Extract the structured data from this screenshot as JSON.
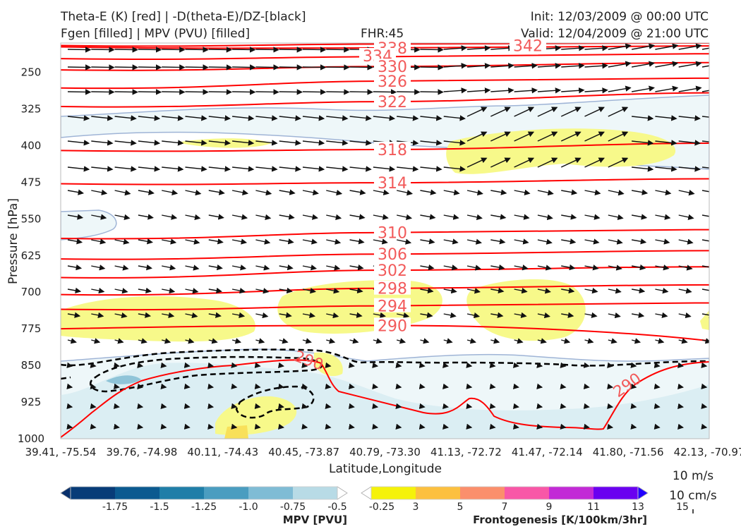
{
  "header": {
    "title_line1": "Theta-E (K) [red] | -D(theta-E)/DZ-[black]",
    "title_line2": "Fgen [filled] | MPV (PVU) [filled]",
    "fhr": "FHR:45",
    "init": "Init: 12/03/2009 @ 00:00 UTC",
    "valid": "Valid: 12/04/2009 @ 21:00 UTC"
  },
  "chart_data": {
    "type": "cross-section",
    "xlabel": "Latitude,Longitude",
    "ylabel": "Pressure [hPa]",
    "x_ticks": [
      "39.41, -75.54",
      "39.76, -74.98",
      "40.11, -74.43",
      "40.45, -73.87",
      "40.79, -73.30",
      "41.13, -72.72",
      "41.47, -72.14",
      "41.80, -71.56",
      "42.13, -70.97"
    ],
    "y_ticks": [
      250,
      325,
      400,
      475,
      550,
      625,
      700,
      775,
      850,
      925,
      1000
    ],
    "ylim": [
      1000,
      190
    ],
    "y_scale": "reversed-linear",
    "theta_e_contours": [
      {
        "value": 342,
        "label": "342",
        "p": [
          195,
          192,
          190
        ]
      },
      {
        "value": 338,
        "label": "338",
        "p": [
          198,
          200,
          196
        ]
      },
      {
        "value": 334,
        "label": "334",
        "p": [
          222,
          218,
          212
        ]
      },
      {
        "value": 330,
        "label": "330",
        "p": [
          245,
          238,
          230
        ]
      },
      {
        "value": 326,
        "label": "326",
        "p": [
          282,
          268,
          262
        ]
      },
      {
        "value": 322,
        "label": "322",
        "p": [
          320,
          310,
          292
        ]
      },
      {
        "value": 318,
        "label": "318",
        "p": [
          410,
          408,
          395
        ]
      },
      {
        "value": 314,
        "label": "314",
        "p": [
          478,
          476,
          468
        ]
      },
      {
        "value": 310,
        "label": "310",
        "p": [
          590,
          578,
          572
        ]
      },
      {
        "value": 306,
        "label": "306",
        "p": [
          632,
          622,
          615
        ]
      },
      {
        "value": 302,
        "label": "302",
        "p": [
          670,
          655,
          648
        ]
      },
      {
        "value": 298,
        "label": "298",
        "p": [
          705,
          692,
          685
        ]
      },
      {
        "value": 294,
        "label": "294",
        "p": [
          735,
          728,
          722
        ]
      },
      {
        "value": 290,
        "label": "290",
        "p": [
          775,
          768,
          812
        ]
      }
    ],
    "mpv_colorbar": {
      "label": "MPV [PVU]",
      "ticks": [
        "-1.75",
        "-1.5",
        "-1.25",
        "-1.0",
        "-0.75",
        "-0.5",
        "-0.25"
      ],
      "colors": [
        "#08306b",
        "#083c78",
        "#0b5a90",
        "#1f7ea8",
        "#4a9dc0",
        "#7fbcd5",
        "#b8dbe6",
        "#ffffff"
      ]
    },
    "fgen_colorbar": {
      "label": "Frontogenesis [K/100km/3hr]",
      "ticks": [
        "3",
        "5",
        "7",
        "9",
        "11",
        "13",
        "15"
      ],
      "colors": [
        "#ffffff",
        "#f5f20a",
        "#fcc03f",
        "#fb8f6c",
        "#f857a7",
        "#c22ad6",
        "#6a00f0",
        "#2200ff"
      ]
    },
    "wind_legend": [
      "10 m/s",
      "10 cm/s"
    ],
    "colors": {
      "theta_e": "#ff0000",
      "stability": "#000000",
      "mpv_light": "#dbeef3",
      "fgen_light": "#f7f98a"
    }
  }
}
